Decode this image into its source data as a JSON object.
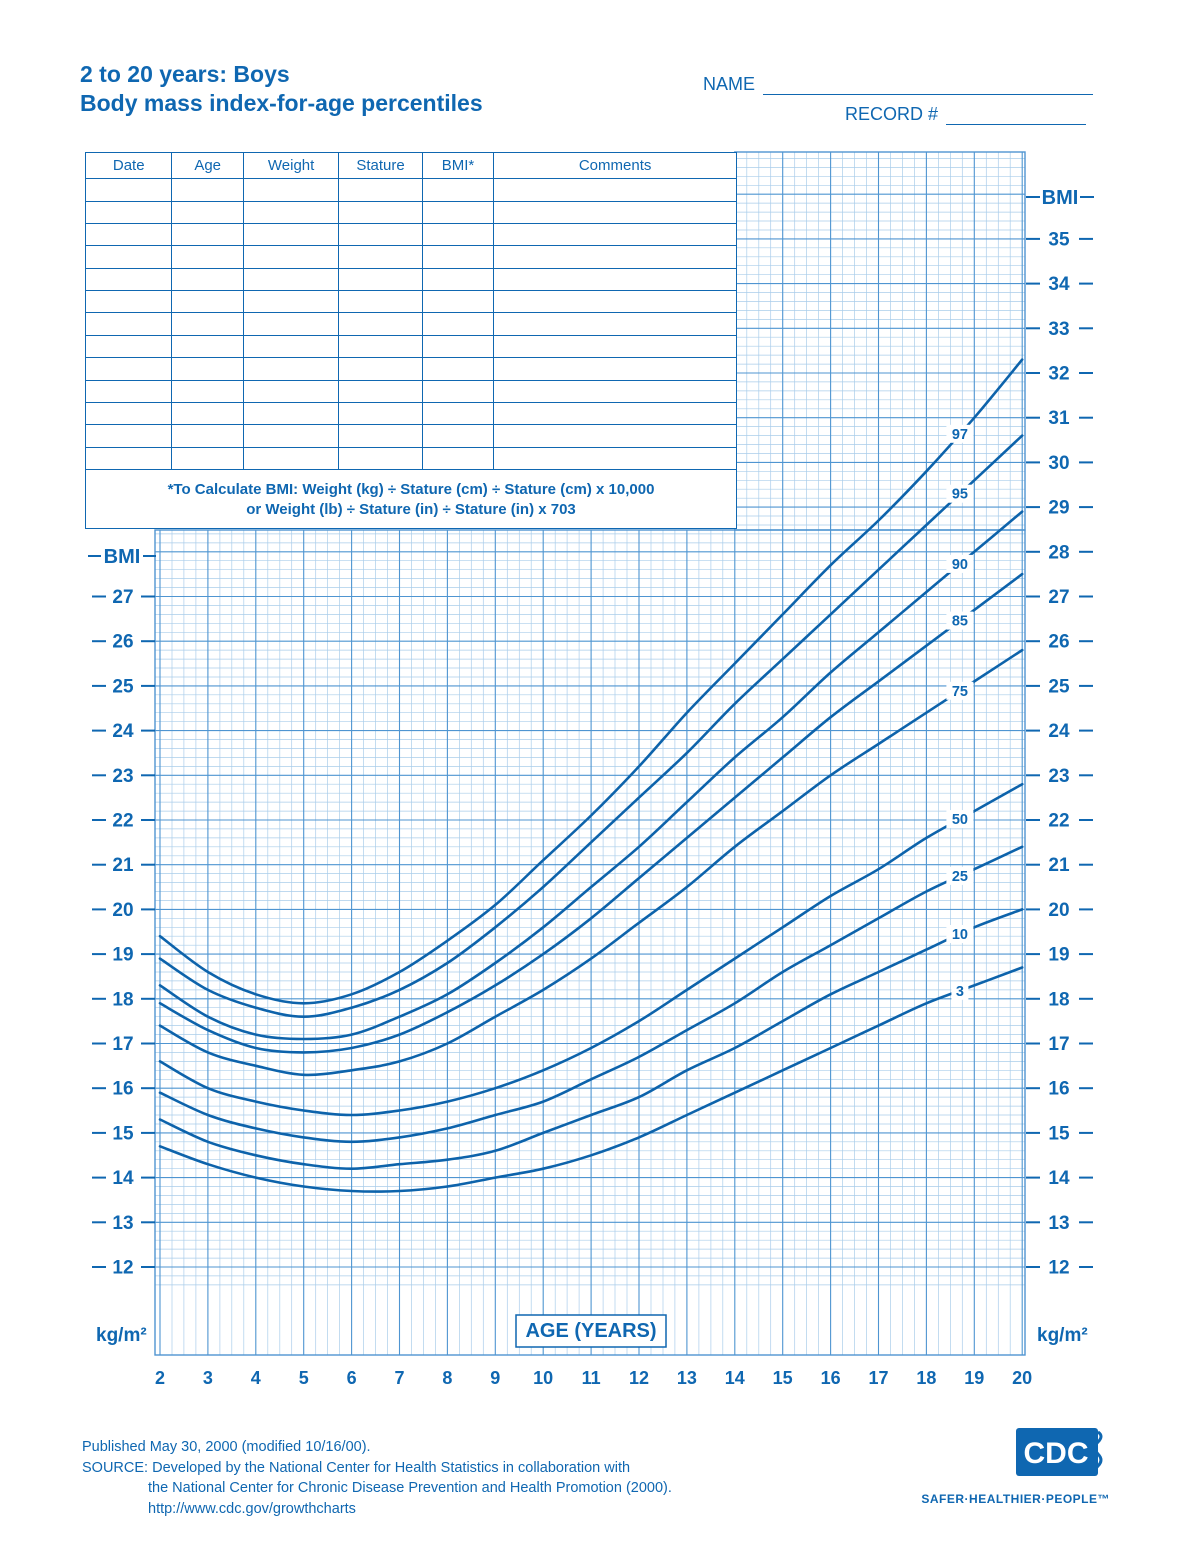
{
  "page": {
    "title_line1": "2 to 20 years: Boys",
    "title_line2": "Body mass index-for-age percentiles",
    "name_label": "NAME",
    "record_label": "RECORD #"
  },
  "table": {
    "columns": [
      "Date",
      "Age",
      "Weight",
      "Stature",
      "BMI*",
      "Comments"
    ],
    "empty_row_count": 13,
    "note_line1": "*To Calculate BMI: Weight (kg) ÷ Stature (cm) ÷ Stature (cm) x 10,000",
    "note_line2": "or Weight (lb) ÷ Stature (in) ÷ Stature (in) x 703"
  },
  "chart_data": {
    "type": "line",
    "title": "Body mass index-for-age percentiles, boys 2 to 20 years",
    "xlabel": "AGE (YEARS)",
    "ylabel_left": "BMI",
    "ylabel_right": "BMI",
    "unit_label": "kg/m²",
    "xlim": [
      2,
      20
    ],
    "ylim_left": [
      12,
      28.5
    ],
    "ylim_right": [
      12,
      37
    ],
    "grid": "on",
    "x_ticks": [
      2,
      3,
      4,
      5,
      6,
      7,
      8,
      9,
      10,
      11,
      12,
      13,
      14,
      15,
      16,
      17,
      18,
      19,
      20
    ],
    "y_ticks_left": [
      27,
      26,
      25,
      24,
      23,
      22,
      21,
      20,
      19,
      18,
      17,
      16,
      15,
      14,
      13,
      12
    ],
    "y_ticks_right": [
      35,
      34,
      33,
      32,
      31,
      30,
      29,
      28,
      27,
      26,
      25,
      24,
      23,
      22,
      21,
      20,
      19,
      18,
      17,
      16,
      15,
      14,
      13,
      12
    ],
    "x": [
      2,
      3,
      4,
      5,
      6,
      7,
      8,
      9,
      10,
      11,
      12,
      13,
      14,
      15,
      16,
      17,
      18,
      19,
      20
    ],
    "label_age": 18.7,
    "series": [
      {
        "name": "97",
        "values": [
          19.4,
          18.6,
          18.1,
          17.9,
          18.1,
          18.6,
          19.3,
          20.1,
          21.1,
          22.1,
          23.2,
          24.4,
          25.5,
          26.6,
          27.7,
          28.7,
          29.8,
          31.0,
          32.3
        ]
      },
      {
        "name": "95",
        "values": [
          18.9,
          18.2,
          17.8,
          17.6,
          17.8,
          18.2,
          18.8,
          19.6,
          20.5,
          21.5,
          22.5,
          23.5,
          24.6,
          25.6,
          26.6,
          27.6,
          28.6,
          29.6,
          30.6
        ]
      },
      {
        "name": "90",
        "values": [
          18.3,
          17.6,
          17.2,
          17.1,
          17.2,
          17.6,
          18.1,
          18.8,
          19.6,
          20.5,
          21.4,
          22.4,
          23.4,
          24.3,
          25.3,
          26.2,
          27.1,
          28.0,
          28.9
        ]
      },
      {
        "name": "85",
        "values": [
          17.9,
          17.3,
          16.9,
          16.8,
          16.9,
          17.2,
          17.7,
          18.3,
          19.0,
          19.8,
          20.7,
          21.6,
          22.5,
          23.4,
          24.3,
          25.1,
          25.9,
          26.7,
          27.5
        ]
      },
      {
        "name": "75",
        "values": [
          17.4,
          16.8,
          16.5,
          16.3,
          16.4,
          16.6,
          17.0,
          17.6,
          18.2,
          18.9,
          19.7,
          20.5,
          21.4,
          22.2,
          23.0,
          23.7,
          24.4,
          25.1,
          25.8
        ]
      },
      {
        "name": "50",
        "values": [
          16.6,
          16.0,
          15.7,
          15.5,
          15.4,
          15.5,
          15.7,
          16.0,
          16.4,
          16.9,
          17.5,
          18.2,
          18.9,
          19.6,
          20.3,
          20.9,
          21.6,
          22.2,
          22.8
        ]
      },
      {
        "name": "25",
        "values": [
          15.9,
          15.4,
          15.1,
          14.9,
          14.8,
          14.9,
          15.1,
          15.4,
          15.7,
          16.2,
          16.7,
          17.3,
          17.9,
          18.6,
          19.2,
          19.8,
          20.4,
          20.9,
          21.4
        ]
      },
      {
        "name": "10",
        "values": [
          15.3,
          14.8,
          14.5,
          14.3,
          14.2,
          14.3,
          14.4,
          14.6,
          15.0,
          15.4,
          15.8,
          16.4,
          16.9,
          17.5,
          18.1,
          18.6,
          19.1,
          19.6,
          20.0
        ]
      },
      {
        "name": "3",
        "values": [
          14.7,
          14.3,
          14.0,
          13.8,
          13.7,
          13.7,
          13.8,
          14.0,
          14.2,
          14.5,
          14.9,
          15.4,
          15.9,
          16.4,
          16.9,
          17.4,
          17.9,
          18.3,
          18.7
        ]
      }
    ]
  },
  "footer": {
    "line1": "Published May 30, 2000 (modified 10/16/00).",
    "line2": "SOURCE: Developed by the National Center for Health Statistics in collaboration with",
    "line3": "the National Center for Chronic Disease Prevention and Health Promotion (2000).",
    "line4": "http://www.cdc.gov/growthcharts"
  },
  "logo": {
    "text": "CDC",
    "tagline": "SAFER·HEALTHIER·PEOPLE™"
  },
  "colors": {
    "ink": "#0f67b1",
    "grid_minor": "#aacdea",
    "grid_major": "#4f95d1",
    "curve": "#0d63ab"
  }
}
